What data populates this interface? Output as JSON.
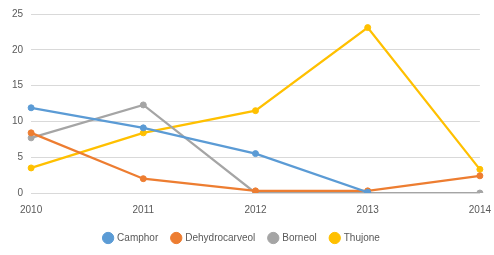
{
  "chart_data": {
    "type": "line",
    "categories": [
      "2010",
      "2011",
      "2012",
      "2013",
      "2014"
    ],
    "series": [
      {
        "name": "Camphor",
        "color": "#5b9bd5",
        "values": [
          11.9,
          9.1,
          5.5,
          0.1,
          null
        ]
      },
      {
        "name": "Dehydrocarveol",
        "color": "#ed7d31",
        "values": [
          8.4,
          2.0,
          0.3,
          0.3,
          2.4
        ]
      },
      {
        "name": "Borneol",
        "color": "#a5a5a5",
        "values": [
          7.7,
          12.3,
          0,
          0,
          0
        ]
      },
      {
        "name": "Thujone",
        "color": "#ffc000",
        "values": [
          3.5,
          8.4,
          11.5,
          23.1,
          3.3
        ]
      }
    ],
    "ylim": [
      0,
      25
    ],
    "yticks": [
      0,
      5,
      10,
      15,
      20,
      25
    ],
    "grid": true,
    "legend": "bottom",
    "marker": "circle"
  }
}
